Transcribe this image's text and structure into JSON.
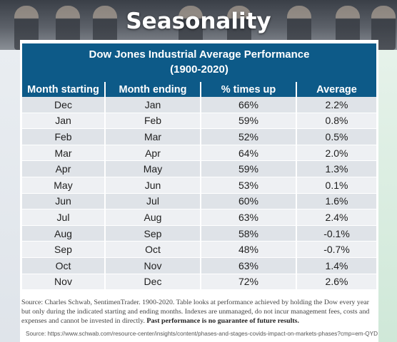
{
  "header": {
    "title": "Seasonality"
  },
  "chart_data": {
    "type": "table",
    "title": "Dow Jones Industrial Average Performance",
    "subtitle": "(1900-2020)",
    "columns": [
      "Month starting",
      "Month ending",
      "% times up",
      "Average"
    ],
    "rows": [
      [
        "Dec",
        "Jan",
        "66%",
        "2.2%"
      ],
      [
        "Jan",
        "Feb",
        "59%",
        "0.8%"
      ],
      [
        "Feb",
        "Mar",
        "52%",
        "0.5%"
      ],
      [
        "Mar",
        "Apr",
        "64%",
        "2.0%"
      ],
      [
        "Apr",
        "May",
        "59%",
        "1.3%"
      ],
      [
        "May",
        "Jun",
        "53%",
        "0.1%"
      ],
      [
        "Jun",
        "Jul",
        "60%",
        "1.6%"
      ],
      [
        "Jul",
        "Aug",
        "63%",
        "2.4%"
      ],
      [
        "Aug",
        "Sep",
        "58%",
        "-0.1%"
      ],
      [
        "Sep",
        "Oct",
        "48%",
        "-0.7%"
      ],
      [
        "Oct",
        "Nov",
        "63%",
        "1.4%"
      ],
      [
        "Nov",
        "Dec",
        "72%",
        "2.6%"
      ]
    ]
  },
  "footnote": {
    "text": "Source: Charles Schwab, SentimenTrader. 1900-2020.  Table looks at performance achieved by holding the Dow every year but only during the indicated starting and ending months. Indexes are unmanaged, do not incur management fees, costs and expenses and cannot be invested in directly. ",
    "bold": "Past performance is no guarantee of future results.",
    "url": "Source: https://www.schwab.com/resource-center/insights/content/phases-and-stages-covids-impact-on-markets-phases?cmp=em-QYD"
  }
}
